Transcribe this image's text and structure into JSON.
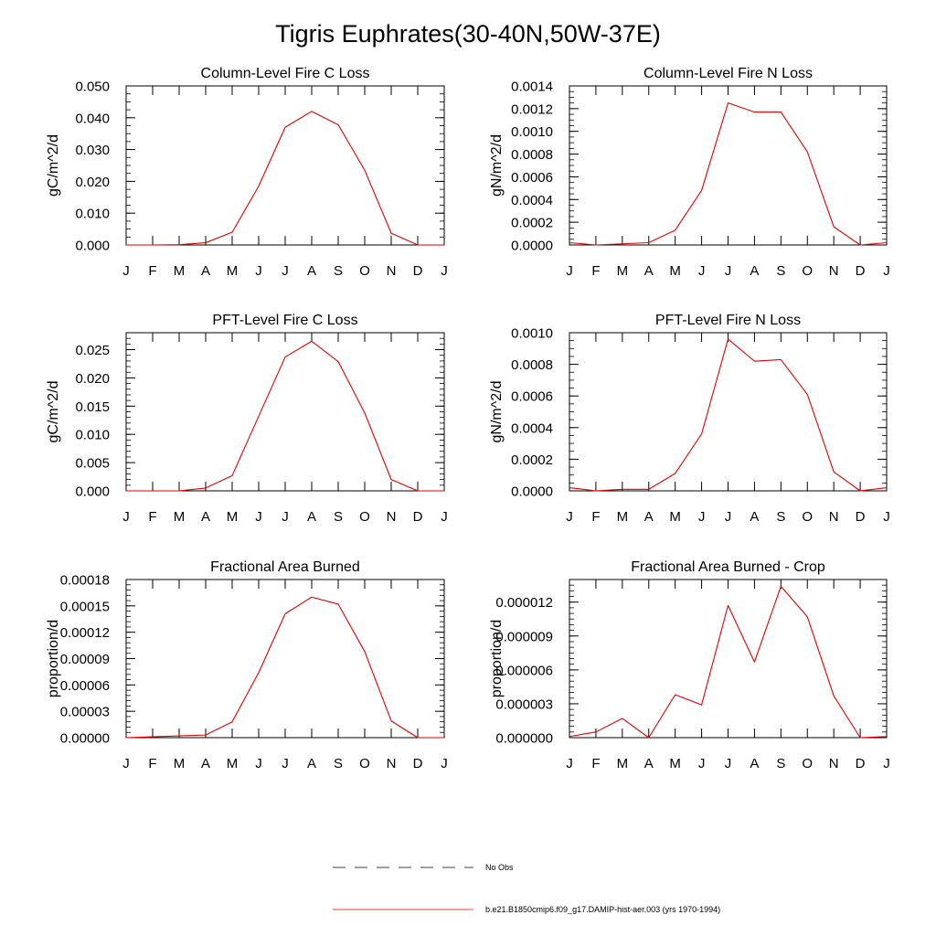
{
  "title": "Tigris Euphrates(30-40N,50W-37E)",
  "line_color": "#e00000",
  "chart_data": [
    {
      "type": "line",
      "title": "Column-Level Fire C Loss",
      "ylabel": "gC/m^2/d",
      "xlabel": "",
      "x": [
        "J",
        "F",
        "M",
        "A",
        "M",
        "J",
        "J",
        "A",
        "S",
        "O",
        "N",
        "D",
        "J"
      ],
      "ylim": [
        0,
        0.05
      ],
      "yticks": [
        "0.000",
        "0.010",
        "0.020",
        "0.030",
        "0.040",
        "0.050"
      ],
      "ytick_values": [
        0,
        0.01,
        0.02,
        0.03,
        0.04,
        0.05
      ],
      "y_minor_step": 0.0025,
      "series": [
        {
          "values": [
            0.0,
            0.0,
            0.0001,
            0.0007,
            0.004,
            0.0185,
            0.037,
            0.042,
            0.0378,
            0.0235,
            0.0037,
            0.0,
            0.0
          ]
        }
      ]
    },
    {
      "type": "line",
      "title": "Column-Level Fire N Loss",
      "ylabel": "gN/m^2/d",
      "xlabel": "",
      "x": [
        "J",
        "F",
        "M",
        "A",
        "M",
        "J",
        "J",
        "A",
        "S",
        "O",
        "N",
        "D",
        "J"
      ],
      "ylim": [
        0,
        0.0014
      ],
      "yticks": [
        "0.0000",
        "0.0002",
        "0.0004",
        "0.0006",
        "0.0008",
        "0.0010",
        "0.0012",
        "0.0014"
      ],
      "ytick_values": [
        0,
        0.0002,
        0.0004,
        0.0006,
        0.0008,
        0.001,
        0.0012,
        0.0014
      ],
      "y_minor_step": 5e-05,
      "series": [
        {
          "values": [
            2e-05,
            0.0,
            1e-05,
            2e-05,
            0.00013,
            0.00048,
            0.00125,
            0.00117,
            0.00117,
            0.00082,
            0.00016,
            0.0,
            2e-05
          ]
        }
      ]
    },
    {
      "type": "line",
      "title": "PFT-Level Fire C Loss",
      "ylabel": "gC/m^2/d",
      "xlabel": "",
      "x": [
        "J",
        "F",
        "M",
        "A",
        "M",
        "J",
        "J",
        "A",
        "S",
        "O",
        "N",
        "D",
        "J"
      ],
      "ylim": [
        0,
        0.028
      ],
      "yticks": [
        "0.000",
        "0.005",
        "0.010",
        "0.015",
        "0.020",
        "0.025"
      ],
      "ytick_values": [
        0,
        0.005,
        0.01,
        0.015,
        0.02,
        0.025
      ],
      "y_minor_step": 0.001,
      "series": [
        {
          "values": [
            0.0,
            0.0,
            0.0,
            0.0005,
            0.0027,
            0.0132,
            0.0237,
            0.0265,
            0.0229,
            0.0138,
            0.002,
            0.0,
            0.0
          ]
        }
      ]
    },
    {
      "type": "line",
      "title": "PFT-Level Fire N Loss",
      "ylabel": "gN/m^2/d",
      "xlabel": "",
      "x": [
        "J",
        "F",
        "M",
        "A",
        "M",
        "J",
        "J",
        "A",
        "S",
        "O",
        "N",
        "D",
        "J"
      ],
      "ylim": [
        0,
        0.001
      ],
      "yticks": [
        "0.0000",
        "0.0002",
        "0.0004",
        "0.0006",
        "0.0008",
        "0.0010"
      ],
      "ytick_values": [
        0,
        0.0002,
        0.0004,
        0.0006,
        0.0008,
        0.001
      ],
      "y_minor_step": 5e-05,
      "series": [
        {
          "values": [
            2e-05,
            0.0,
            1e-05,
            1e-05,
            0.00011,
            0.00036,
            0.00096,
            0.00082,
            0.00083,
            0.00061,
            0.00012,
            0.0,
            2e-05
          ]
        }
      ]
    },
    {
      "type": "line",
      "title": "Fractional Area Burned",
      "ylabel": "proportion/d",
      "xlabel": "",
      "x": [
        "J",
        "F",
        "M",
        "A",
        "M",
        "J",
        "J",
        "A",
        "S",
        "O",
        "N",
        "D",
        "J"
      ],
      "ylim": [
        0,
        0.00018
      ],
      "yticks": [
        "0.00000",
        "0.00003",
        "0.00006",
        "0.00009",
        "0.00012",
        "0.00015",
        "0.00018"
      ],
      "ytick_values": [
        0,
        3e-05,
        6e-05,
        9e-05,
        0.00012,
        0.00015,
        0.00018
      ],
      "y_minor_step": 6e-06,
      "series": [
        {
          "values": [
            0.0,
            1e-06,
            2e-06,
            3e-06,
            1.8e-05,
            7.4e-05,
            0.000141,
            0.00016,
            0.000152,
            9.8e-05,
            1.9e-05,
            0.0,
            0.0
          ]
        }
      ]
    },
    {
      "type": "line",
      "title": "Fractional Area Burned - Crop",
      "ylabel": "proportion/d",
      "xlabel": "",
      "x": [
        "J",
        "F",
        "M",
        "A",
        "M",
        "J",
        "J",
        "A",
        "S",
        "O",
        "N",
        "D",
        "J"
      ],
      "ylim": [
        0,
        1.4e-05
      ],
      "yticks": [
        "0.000000",
        "0.000003",
        "0.000006",
        "0.000009",
        "0.000012"
      ],
      "ytick_values": [
        0,
        3e-06,
        6e-06,
        9e-06,
        1.2e-05
      ],
      "y_minor_step": 5e-07,
      "series": [
        {
          "values": [
            1e-07,
            5e-07,
            1.7e-06,
            0.0,
            3.8e-06,
            2.9e-06,
            1.17e-05,
            6.7e-06,
            1.34e-05,
            1.07e-05,
            3.7e-06,
            0.0,
            1e-07
          ]
        }
      ]
    }
  ],
  "legend": {
    "items": [
      {
        "label": "No Obs",
        "style": "dashed",
        "color": "#000000"
      },
      {
        "label": "b.e21.B1850cmip6.f09_g17.DAMIP-hist-aer.003 (yrs 1970-1994)",
        "style": "solid",
        "color": "#e00000"
      }
    ]
  }
}
